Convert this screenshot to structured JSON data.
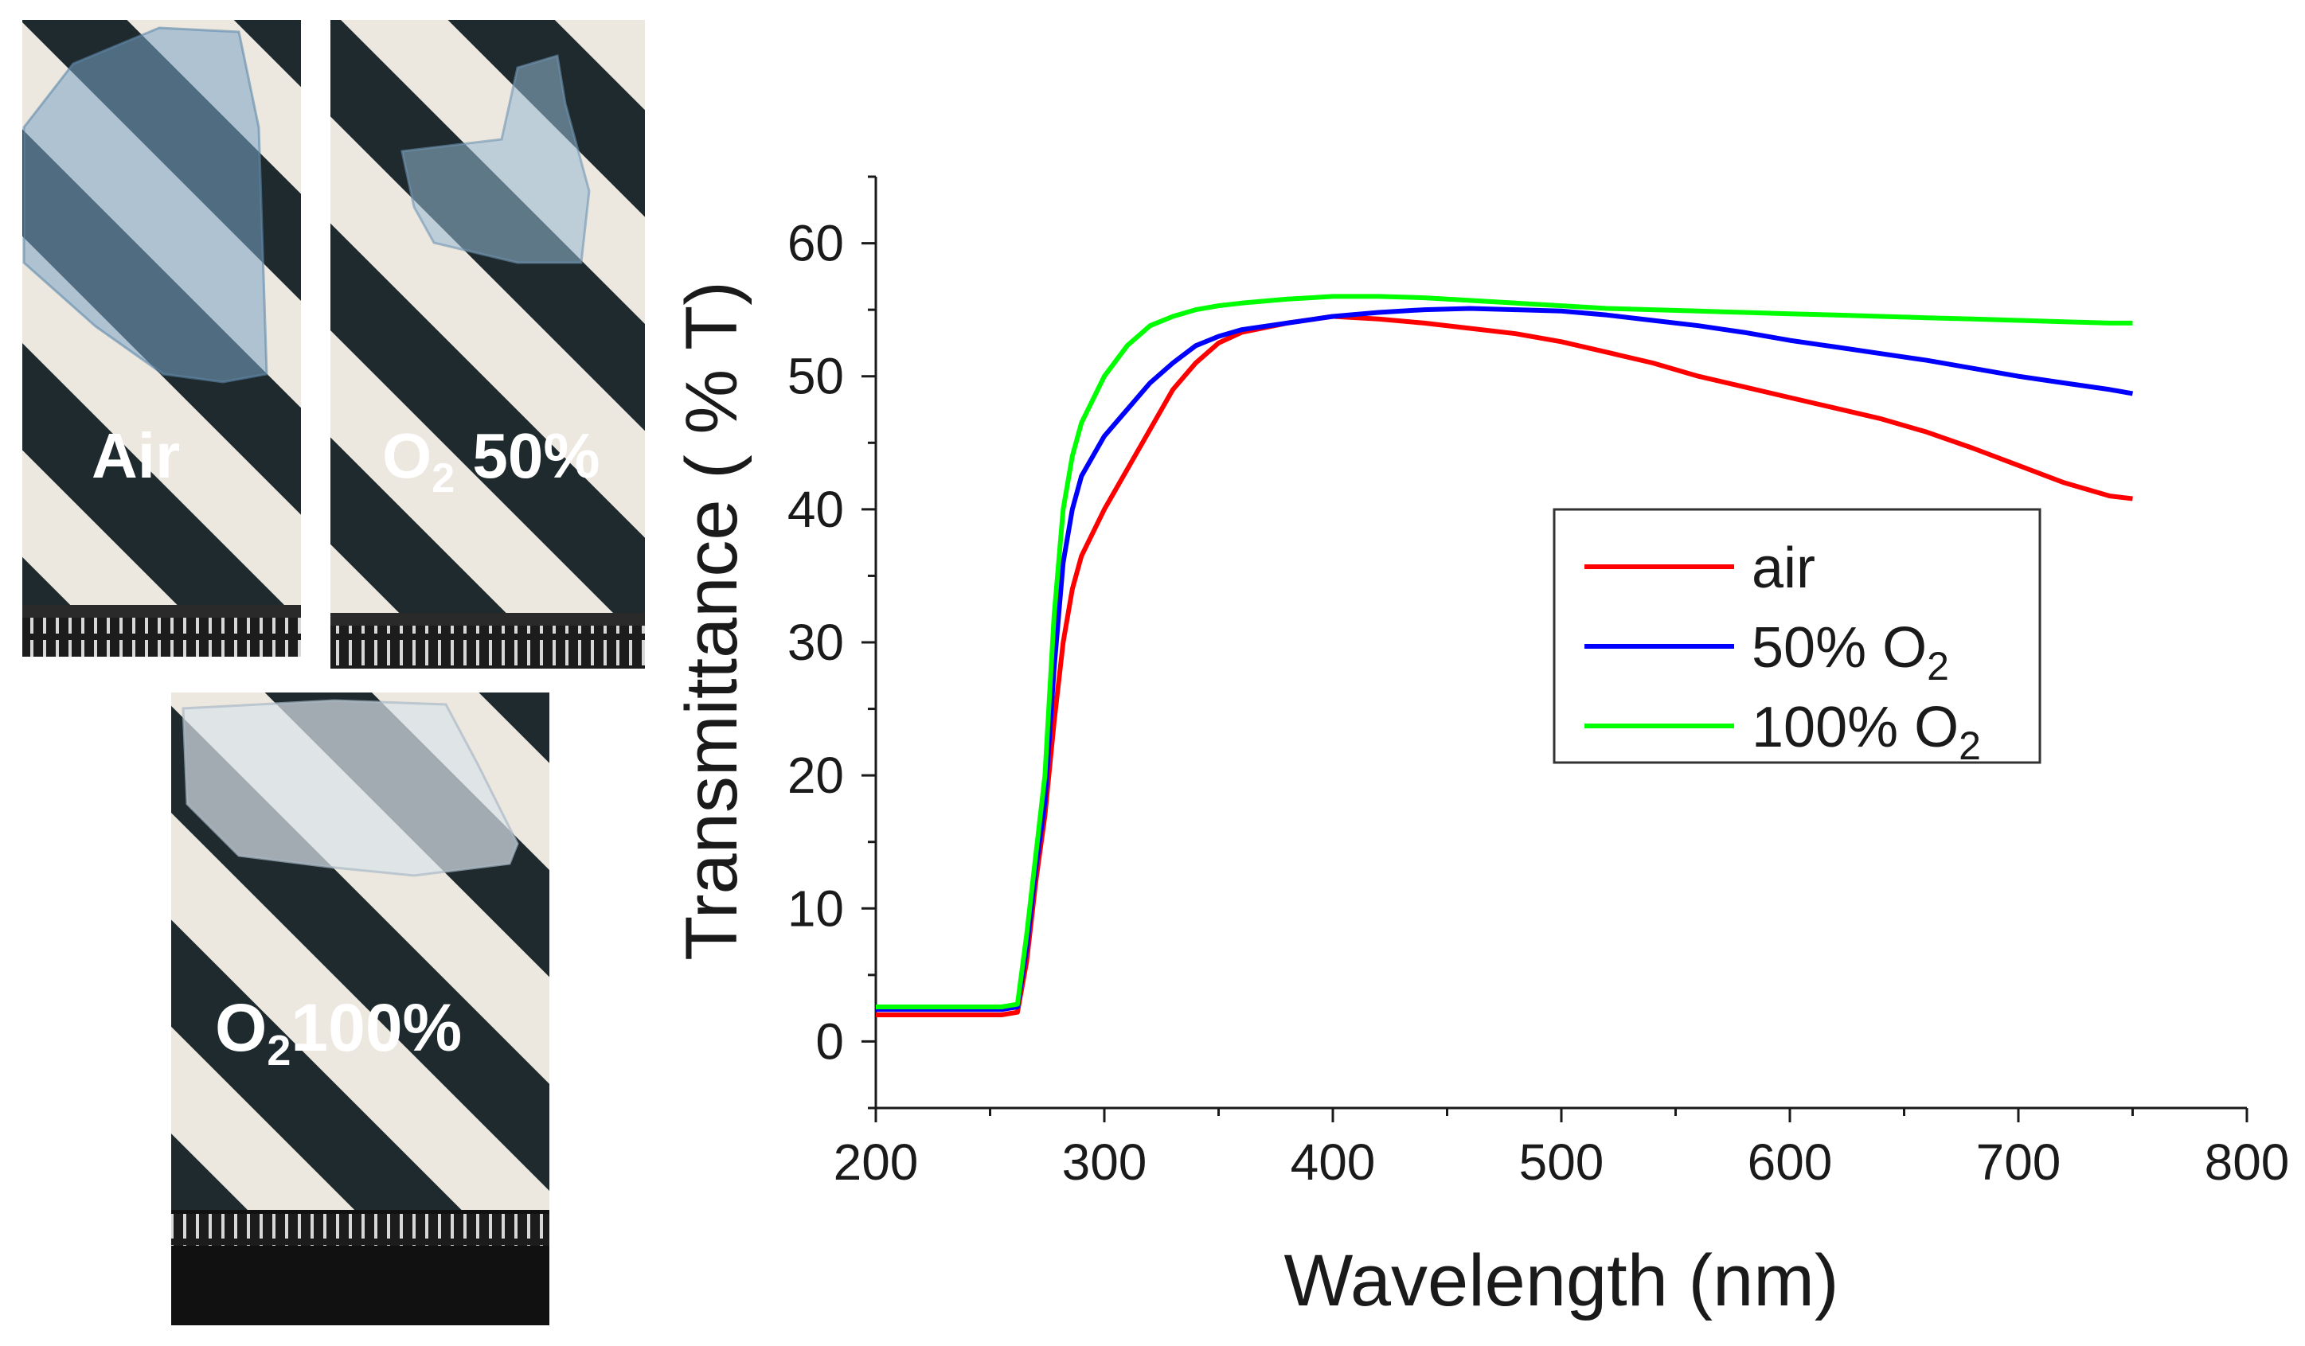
{
  "photos": [
    {
      "label_main": "Air",
      "label_sub": "",
      "label_suffix": "",
      "tint": "#8db3d1",
      "icon": "sample-photo"
    },
    {
      "label_main": "O",
      "label_sub": "2",
      "label_suffix": " 50%",
      "tint": "#a9c4d8",
      "icon": "sample-photo"
    },
    {
      "label_main": "O",
      "label_sub": "2",
      "label_suffix": "100%",
      "tint": "#d7e0e8",
      "icon": "sample-photo"
    }
  ],
  "chart_data": {
    "type": "line",
    "xlabel": "Wavelength (nm)",
    "ylabel": "Transmittance ( % T)",
    "xlim": [
      200,
      800
    ],
    "ylim": [
      -5,
      65
    ],
    "xticks": [
      200,
      300,
      400,
      500,
      600,
      700,
      800
    ],
    "yticks": [
      0,
      10,
      20,
      30,
      40,
      50,
      60
    ],
    "grid": false,
    "legend_position": "center-right",
    "series": [
      {
        "name": "air",
        "name_sub": "",
        "color": "#ff0000",
        "x": [
          200,
          220,
          240,
          255,
          262,
          266,
          270,
          274,
          278,
          282,
          286,
          290,
          300,
          310,
          320,
          330,
          340,
          350,
          360,
          380,
          400,
          420,
          440,
          460,
          480,
          500,
          520,
          540,
          560,
          580,
          600,
          620,
          640,
          660,
          680,
          700,
          720,
          740,
          750
        ],
        "y": [
          2,
          2,
          2,
          2,
          2.2,
          6,
          12,
          17,
          24,
          30,
          34,
          36.5,
          40,
          43,
          46,
          49,
          51,
          52.5,
          53.3,
          54,
          54.5,
          54.3,
          54,
          53.6,
          53.2,
          52.6,
          51.8,
          51,
          50,
          49.2,
          48.4,
          47.6,
          46.8,
          45.8,
          44.6,
          43.3,
          42,
          41,
          40.8
        ]
      },
      {
        "name": "50% O",
        "name_sub": "2",
        "color": "#0000ff",
        "x": [
          200,
          220,
          240,
          255,
          262,
          266,
          270,
          274,
          278,
          282,
          286,
          290,
          300,
          310,
          320,
          330,
          340,
          350,
          360,
          380,
          400,
          420,
          440,
          460,
          480,
          500,
          520,
          540,
          560,
          580,
          600,
          620,
          640,
          660,
          680,
          700,
          720,
          740,
          750
        ],
        "y": [
          2.4,
          2.4,
          2.4,
          2.4,
          2.6,
          7,
          13,
          18,
          28,
          36,
          40,
          42.5,
          45.5,
          47.5,
          49.5,
          51,
          52.3,
          53,
          53.5,
          54,
          54.5,
          54.8,
          55,
          55.1,
          55,
          54.9,
          54.6,
          54.2,
          53.8,
          53.3,
          52.7,
          52.2,
          51.7,
          51.2,
          50.6,
          50,
          49.5,
          49,
          48.7
        ]
      },
      {
        "name": "100% O",
        "name_sub": "2",
        "color": "#00ff00",
        "x": [
          200,
          220,
          240,
          255,
          262,
          266,
          270,
          274,
          278,
          282,
          286,
          290,
          300,
          310,
          320,
          330,
          340,
          350,
          360,
          380,
          400,
          420,
          440,
          460,
          480,
          500,
          520,
          540,
          560,
          580,
          600,
          620,
          640,
          660,
          680,
          700,
          720,
          740,
          750
        ],
        "y": [
          2.6,
          2.6,
          2.6,
          2.6,
          2.8,
          8,
          14,
          20,
          32,
          40,
          44,
          46.5,
          50,
          52.3,
          53.8,
          54.5,
          55,
          55.3,
          55.5,
          55.8,
          56,
          56,
          55.9,
          55.7,
          55.5,
          55.3,
          55.1,
          55,
          54.9,
          54.8,
          54.7,
          54.6,
          54.5,
          54.4,
          54.3,
          54.2,
          54.1,
          54,
          54
        ]
      }
    ]
  }
}
